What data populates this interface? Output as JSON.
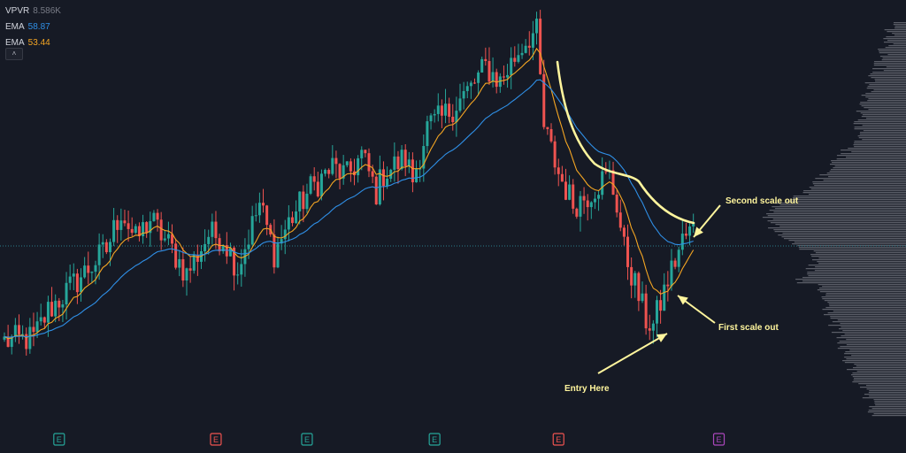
{
  "legend": {
    "vpvr_label": "VPVR",
    "vpvr_value": "8.586K",
    "ema_fast_label": "EMA",
    "ema_fast_value": "58.87",
    "ema_slow_label": "EMA",
    "ema_slow_value": "53.44",
    "collapse_glyph": "˄"
  },
  "colors": {
    "background": "#161a25",
    "up_candle": "#26a69a",
    "down_candle": "#ef5350",
    "ema_fast": "#2f8fe6",
    "ema_slow": "#f5a623",
    "annotation": "#fff59d",
    "volume_profile": "#9598a1",
    "current_price_line": "#2a7d8c",
    "earnings_green": "#26a69a",
    "earnings_red": "#ef5350",
    "earnings_upcoming": "#ab47bc"
  },
  "chart_data": {
    "type": "candlestick",
    "candle_count": 190,
    "price_path": [
      [
        0,
        25
      ],
      [
        8,
        26
      ],
      [
        12,
        35
      ],
      [
        20,
        45
      ],
      [
        28,
        55
      ],
      [
        32,
        68
      ],
      [
        36,
        58
      ],
      [
        40,
        65
      ],
      [
        46,
        55
      ],
      [
        50,
        47
      ],
      [
        56,
        60
      ],
      [
        60,
        59
      ],
      [
        64,
        49
      ],
      [
        70,
        70
      ],
      [
        74,
        54
      ],
      [
        78,
        64
      ],
      [
        84,
        75
      ],
      [
        90,
        82
      ],
      [
        94,
        79
      ],
      [
        98,
        86
      ],
      [
        102,
        74
      ],
      [
        104,
        80
      ],
      [
        110,
        85
      ],
      [
        112,
        78
      ],
      [
        116,
        95
      ],
      [
        120,
        98
      ],
      [
        128,
        108
      ],
      [
        132,
        115
      ],
      [
        136,
        110
      ],
      [
        140,
        118
      ],
      [
        142,
        122
      ],
      [
        144,
        125
      ],
      [
        146,
        126
      ],
      [
        148,
        95
      ],
      [
        152,
        80
      ],
      [
        156,
        70
      ],
      [
        160,
        73
      ],
      [
        164,
        78
      ],
      [
        166,
        79
      ],
      [
        168,
        70
      ],
      [
        170,
        55
      ],
      [
        176,
        32
      ],
      [
        178,
        30
      ],
      [
        182,
        45
      ],
      [
        186,
        58
      ],
      [
        189,
        62
      ]
    ],
    "ema_fast_value": 58.87,
    "ema_slow_value": 53.44,
    "earnings_markers": [
      {
        "index": 15,
        "status": "beat"
      },
      {
        "index": 58,
        "status": "miss"
      },
      {
        "index": 83,
        "status": "beat"
      },
      {
        "index": 118,
        "status": "beat"
      },
      {
        "index": 152,
        "status": "miss"
      },
      {
        "index": 196,
        "status": "upcoming"
      }
    ],
    "earnings_glyph": "E",
    "annotations": [
      {
        "text": "Second scale out",
        "target_index": 188
      },
      {
        "text": "First scale out",
        "target_index": 184
      },
      {
        "text": "Entry Here",
        "target_index": 180
      }
    ],
    "trend_curve": "traced resistance curve from the peak down to the second scale out",
    "volume_profile": "horizontal volume-by-price histogram on the right edge"
  }
}
